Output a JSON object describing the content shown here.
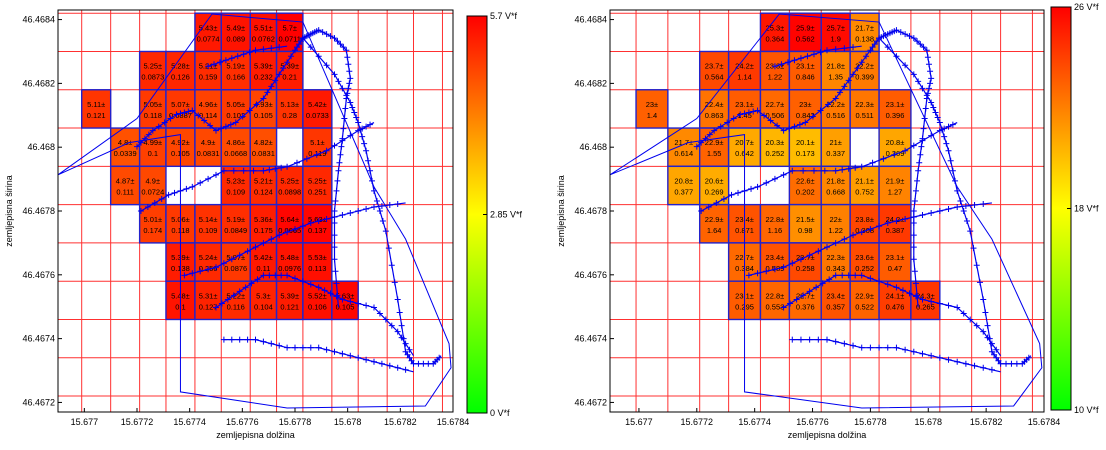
{
  "chart_data": [
    {
      "type": "heatmap",
      "xlabel": "zemljepisna dolžina",
      "ylabel": "zemljepisna širina",
      "xlim": [
        15.6769,
        15.6784
      ],
      "ylim": [
        46.46717,
        46.46843
      ],
      "xticks": [
        "15.677",
        "15.6772",
        "15.6774",
        "15.6776",
        "15.6778",
        "15.678",
        "15.6782",
        "15.6784"
      ],
      "xtick_values": [
        15.677,
        15.6772,
        15.6774,
        15.6776,
        15.6778,
        15.678,
        15.6782,
        15.6784
      ],
      "yticks": [
        "46.4672",
        "46.4674",
        "46.4676",
        "46.4678",
        "46.468",
        "46.4682",
        "46.4684"
      ],
      "ytick_values": [
        46.4672,
        46.4674,
        46.4676,
        46.4678,
        46.468,
        46.4682,
        46.4684
      ],
      "x_edges": [
        15.67689,
        15.67699,
        15.6771,
        15.67721,
        15.67731,
        15.67742,
        15.67752,
        15.67763,
        15.67773,
        15.67783,
        15.67794,
        15.67804,
        15.67815,
        15.67825,
        15.67836
      ],
      "y_edges": [
        46.46842,
        46.4683,
        46.46818,
        46.46806,
        46.46794,
        46.46782,
        46.4677,
        46.46758,
        46.46746,
        46.46734,
        46.46722
      ],
      "colorbar": {
        "min": 0,
        "max": 5.7,
        "ticks": [
          "0 V*f",
          "2.85 V*f",
          "5.7 V*f"
        ],
        "tick_values": [
          0,
          2.85,
          5.7
        ]
      },
      "cells": [
        {
          "row": 0,
          "col": 5,
          "mean": "5.43±",
          "std": "0.0774",
          "value": 5.43
        },
        {
          "row": 0,
          "col": 6,
          "mean": "5.49±",
          "std": "0.089",
          "value": 5.49
        },
        {
          "row": 0,
          "col": 7,
          "mean": "5.51±",
          "std": "0.0762",
          "value": 5.51
        },
        {
          "row": 0,
          "col": 8,
          "mean": "5.7±",
          "std": "0.0711",
          "value": 5.7
        },
        {
          "row": 1,
          "col": 3,
          "mean": "5.25±",
          "std": "0.0873",
          "value": 5.25
        },
        {
          "row": 1,
          "col": 4,
          "mean": "5.28±",
          "std": "0.126",
          "value": 5.28
        },
        {
          "row": 1,
          "col": 5,
          "mean": "5.21±",
          "std": "0.159",
          "value": 5.21
        },
        {
          "row": 1,
          "col": 6,
          "mean": "5.19±",
          "std": "0.166",
          "value": 5.19
        },
        {
          "row": 1,
          "col": 7,
          "mean": "5.39±",
          "std": "0.232",
          "value": 5.39
        },
        {
          "row": 1,
          "col": 8,
          "mean": "5.39±",
          "std": "0.21",
          "value": 5.39
        },
        {
          "row": 2,
          "col": 1,
          "mean": "5.11±",
          "std": "0.121",
          "value": 5.11
        },
        {
          "row": 2,
          "col": 3,
          "mean": "5.05±",
          "std": "0.118",
          "value": 5.05
        },
        {
          "row": 2,
          "col": 4,
          "mean": "5.07±",
          "std": "0.0887",
          "value": 5.07
        },
        {
          "row": 2,
          "col": 5,
          "mean": "4.96±",
          "std": "0.114",
          "value": 4.96
        },
        {
          "row": 2,
          "col": 6,
          "mean": "5.05±",
          "std": "0.102",
          "value": 5.05
        },
        {
          "row": 2,
          "col": 7,
          "mean": "4.93±",
          "std": "0.105",
          "value": 4.93
        },
        {
          "row": 2,
          "col": 8,
          "mean": "5.13±",
          "std": "0.28",
          "value": 5.13
        },
        {
          "row": 2,
          "col": 9,
          "mean": "5.42±",
          "std": "0.0733",
          "value": 5.42
        },
        {
          "row": 3,
          "col": 2,
          "mean": "4.8±",
          "std": "0.0339",
          "value": 4.8
        },
        {
          "row": 3,
          "col": 3,
          "mean": "4.99±",
          "std": "0.1",
          "value": 4.99
        },
        {
          "row": 3,
          "col": 4,
          "mean": "4.92±",
          "std": "0.105",
          "value": 4.92
        },
        {
          "row": 3,
          "col": 5,
          "mean": "4.9±",
          "std": "0.0831",
          "value": 4.9
        },
        {
          "row": 3,
          "col": 6,
          "mean": "4.86±",
          "std": "0.0668",
          "value": 4.86
        },
        {
          "row": 3,
          "col": 7,
          "mean": "4.82±",
          "std": "0.0831",
          "value": 4.82
        },
        {
          "row": 3,
          "col": 9,
          "mean": "5.1±",
          "std": "0.119",
          "value": 5.1
        },
        {
          "row": 4,
          "col": 2,
          "mean": "4.87±",
          "std": "0.111",
          "value": 4.87
        },
        {
          "row": 4,
          "col": 3,
          "mean": "4.9±",
          "std": "0.0724",
          "value": 4.9
        },
        {
          "row": 4,
          "col": 6,
          "mean": "5.23±",
          "std": "0.109",
          "value": 5.23
        },
        {
          "row": 4,
          "col": 7,
          "mean": "5.21±",
          "std": "0.124",
          "value": 5.21
        },
        {
          "row": 4,
          "col": 8,
          "mean": "5.25±",
          "std": "0.0898",
          "value": 5.25
        },
        {
          "row": 4,
          "col": 9,
          "mean": "5.25±",
          "std": "0.251",
          "value": 5.25
        },
        {
          "row": 5,
          "col": 3,
          "mean": "5.01±",
          "std": "0.174",
          "value": 5.01
        },
        {
          "row": 5,
          "col": 4,
          "mean": "5.06±",
          "std": "0.118",
          "value": 5.06
        },
        {
          "row": 5,
          "col": 5,
          "mean": "5.14±",
          "std": "0.109",
          "value": 5.14
        },
        {
          "row": 5,
          "col": 6,
          "mean": "5.19±",
          "std": "0.0849",
          "value": 5.19
        },
        {
          "row": 5,
          "col": 7,
          "mean": "5.36±",
          "std": "0.175",
          "value": 5.36
        },
        {
          "row": 5,
          "col": 8,
          "mean": "5.64±",
          "std": "0.0665",
          "value": 5.64
        },
        {
          "row": 5,
          "col": 9,
          "mean": "5.63±",
          "std": "0.137",
          "value": 5.63
        },
        {
          "row": 6,
          "col": 4,
          "mean": "5.39±",
          "std": "0.138",
          "value": 5.39
        },
        {
          "row": 6,
          "col": 5,
          "mean": "5.24±",
          "std": "0.256",
          "value": 5.24
        },
        {
          "row": 6,
          "col": 6,
          "mean": "5.07±",
          "std": "0.0876",
          "value": 5.07
        },
        {
          "row": 6,
          "col": 7,
          "mean": "5.42±",
          "std": "0.11",
          "value": 5.42
        },
        {
          "row": 6,
          "col": 8,
          "mean": "5.48±",
          "std": "0.0976",
          "value": 5.48
        },
        {
          "row": 6,
          "col": 9,
          "mean": "5.53±",
          "std": "0.113",
          "value": 5.53
        },
        {
          "row": 7,
          "col": 4,
          "mean": "5.48±",
          "std": "0.1",
          "value": 5.48
        },
        {
          "row": 7,
          "col": 5,
          "mean": "5.31±",
          "std": "0.127",
          "value": 5.31
        },
        {
          "row": 7,
          "col": 6,
          "mean": "5.22±",
          "std": "0.116",
          "value": 5.22
        },
        {
          "row": 7,
          "col": 7,
          "mean": "5.3±",
          "std": "0.104",
          "value": 5.3
        },
        {
          "row": 7,
          "col": 8,
          "mean": "5.39±",
          "std": "0.121",
          "value": 5.39
        },
        {
          "row": 7,
          "col": 9,
          "mean": "5.52±",
          "std": "0.106",
          "value": 5.52
        },
        {
          "row": 7,
          "col": 10,
          "mean": "5.63±",
          "std": "0.105",
          "value": 5.63
        }
      ]
    },
    {
      "type": "heatmap",
      "xlabel": "zemljepisna dolžina",
      "ylabel": "zemljepisna širina",
      "xlim": [
        15.6769,
        15.6784
      ],
      "ylim": [
        46.46717,
        46.46843
      ],
      "xticks": [
        "15.677",
        "15.6772",
        "15.6774",
        "15.6776",
        "15.6778",
        "15.678",
        "15.6782",
        "15.6784"
      ],
      "xtick_values": [
        15.677,
        15.6772,
        15.6774,
        15.6776,
        15.6778,
        15.678,
        15.6782,
        15.6784
      ],
      "yticks": [
        "46.4672",
        "46.4674",
        "46.4676",
        "46.4678",
        "46.468",
        "46.4682",
        "46.4684"
      ],
      "ytick_values": [
        46.4672,
        46.4674,
        46.4676,
        46.4678,
        46.468,
        46.4682,
        46.4684
      ],
      "x_edges": [
        15.67689,
        15.67699,
        15.6771,
        15.67721,
        15.67731,
        15.67742,
        15.67752,
        15.67763,
        15.67773,
        15.67783,
        15.67794,
        15.67804,
        15.67815,
        15.67825,
        15.67836
      ],
      "y_edges": [
        46.46842,
        46.4683,
        46.46818,
        46.46806,
        46.46794,
        46.46782,
        46.4677,
        46.46758,
        46.46746,
        46.46734,
        46.46722
      ],
      "colorbar": {
        "min": 10,
        "max": 26,
        "ticks": [
          "10 V*f",
          "18 V*f",
          "26 V*f"
        ],
        "tick_values": [
          10,
          18,
          26
        ]
      },
      "cells": [
        {
          "row": 0,
          "col": 5,
          "mean": "25.3±",
          "std": "0.364",
          "value": 25.3
        },
        {
          "row": 0,
          "col": 6,
          "mean": "25.9±",
          "std": "0.562",
          "value": 25.9
        },
        {
          "row": 0,
          "col": 7,
          "mean": "25.7±",
          "std": "1.9",
          "value": 25.7
        },
        {
          "row": 0,
          "col": 8,
          "mean": "21.7±",
          "std": "0.138",
          "value": 21.7
        },
        {
          "row": 1,
          "col": 3,
          "mean": "23.7±",
          "std": "0.564",
          "value": 23.7
        },
        {
          "row": 1,
          "col": 4,
          "mean": "24.2±",
          "std": "1.14",
          "value": 24.2
        },
        {
          "row": 1,
          "col": 5,
          "mean": "23.3±",
          "std": "1.22",
          "value": 23.3
        },
        {
          "row": 1,
          "col": 6,
          "mean": "23.1±",
          "std": "0.846",
          "value": 23.1
        },
        {
          "row": 1,
          "col": 7,
          "mean": "21.8±",
          "std": "1.35",
          "value": 21.8
        },
        {
          "row": 1,
          "col": 8,
          "mean": "22.2±",
          "std": "0.399",
          "value": 22.2
        },
        {
          "row": 2,
          "col": 1,
          "mean": "23±",
          "std": "1.4",
          "value": 23
        },
        {
          "row": 2,
          "col": 3,
          "mean": "22.4±",
          "std": "0.863",
          "value": 22.4
        },
        {
          "row": 2,
          "col": 4,
          "mean": "23.1±",
          "std": "1.45",
          "value": 23.1
        },
        {
          "row": 2,
          "col": 5,
          "mean": "22.7±",
          "std": "0.506",
          "value": 22.7
        },
        {
          "row": 2,
          "col": 6,
          "mean": "23±",
          "std": "0.842",
          "value": 23
        },
        {
          "row": 2,
          "col": 7,
          "mean": "22.2±",
          "std": "0.516",
          "value": 22.2
        },
        {
          "row": 2,
          "col": 8,
          "mean": "22.3±",
          "std": "0.511",
          "value": 22.3
        },
        {
          "row": 2,
          "col": 9,
          "mean": "23.1±",
          "std": "0.396",
          "value": 23.1
        },
        {
          "row": 3,
          "col": 2,
          "mean": "21.7±",
          "std": "0.614",
          "value": 21.7
        },
        {
          "row": 3,
          "col": 3,
          "mean": "22.9±",
          "std": "1.55",
          "value": 22.9
        },
        {
          "row": 3,
          "col": 4,
          "mean": "20.7±",
          "std": "0.642",
          "value": 20.7
        },
        {
          "row": 3,
          "col": 5,
          "mean": "20.3±",
          "std": "0.252",
          "value": 20.3
        },
        {
          "row": 3,
          "col": 6,
          "mean": "20.1±",
          "std": "0.173",
          "value": 20.1
        },
        {
          "row": 3,
          "col": 7,
          "mean": "21±",
          "std": "0.337",
          "value": 21
        },
        {
          "row": 3,
          "col": 9,
          "mean": "20.8±",
          "std": "0.369",
          "value": 20.8
        },
        {
          "row": 4,
          "col": 2,
          "mean": "20.8±",
          "std": "0.377",
          "value": 20.8
        },
        {
          "row": 4,
          "col": 3,
          "mean": "20.6±",
          "std": "0.269",
          "value": 20.6
        },
        {
          "row": 4,
          "col": 6,
          "mean": "22.6±",
          "std": "0.202",
          "value": 22.6
        },
        {
          "row": 4,
          "col": 7,
          "mean": "21.8±",
          "std": "0.668",
          "value": 21.8
        },
        {
          "row": 4,
          "col": 8,
          "mean": "21.1±",
          "std": "0.752",
          "value": 21.1
        },
        {
          "row": 4,
          "col": 9,
          "mean": "21.9±",
          "std": "1.27",
          "value": 21.9
        },
        {
          "row": 5,
          "col": 3,
          "mean": "22.9±",
          "std": "1.64",
          "value": 22.9
        },
        {
          "row": 5,
          "col": 4,
          "mean": "23.4±",
          "std": "0.871",
          "value": 23.4
        },
        {
          "row": 5,
          "col": 5,
          "mean": "22.8±",
          "std": "1.16",
          "value": 22.8
        },
        {
          "row": 5,
          "col": 6,
          "mean": "21.5±",
          "std": "0.98",
          "value": 21.5
        },
        {
          "row": 5,
          "col": 7,
          "mean": "22±",
          "std": "1.22",
          "value": 22
        },
        {
          "row": 5,
          "col": 8,
          "mean": "23.8±",
          "std": "0.308",
          "value": 23.8
        },
        {
          "row": 5,
          "col": 9,
          "mean": "24.2±",
          "std": "0.387",
          "value": 24.2
        },
        {
          "row": 6,
          "col": 4,
          "mean": "22.7±",
          "std": "0.384",
          "value": 22.7
        },
        {
          "row": 6,
          "col": 5,
          "mean": "23.4±",
          "std": "0.589",
          "value": 23.4
        },
        {
          "row": 6,
          "col": 6,
          "mean": "23.7±",
          "std": "0.258",
          "value": 23.7
        },
        {
          "row": 6,
          "col": 7,
          "mean": "22.3±",
          "std": "0.343",
          "value": 22.3
        },
        {
          "row": 6,
          "col": 8,
          "mean": "23.6±",
          "std": "0.252",
          "value": 23.6
        },
        {
          "row": 6,
          "col": 9,
          "mean": "23.1±",
          "std": "0.47",
          "value": 23.1
        },
        {
          "row": 7,
          "col": 4,
          "mean": "23.1±",
          "std": "0.295",
          "value": 23.1
        },
        {
          "row": 7,
          "col": 5,
          "mean": "22.8±",
          "std": "0.553",
          "value": 22.8
        },
        {
          "row": 7,
          "col": 6,
          "mean": "22.7±",
          "std": "0.376",
          "value": 22.7
        },
        {
          "row": 7,
          "col": 7,
          "mean": "23.4±",
          "std": "0.357",
          "value": 23.4
        },
        {
          "row": 7,
          "col": 8,
          "mean": "22.9±",
          "std": "0.522",
          "value": 22.9
        },
        {
          "row": 7,
          "col": 9,
          "mean": "24.1±",
          "std": "0.476",
          "value": 24.1
        },
        {
          "row": 7,
          "col": 10,
          "mean": "24.3±",
          "std": "0.265",
          "value": 24.3
        }
      ]
    }
  ],
  "colors": {
    "grid": "#ff3030",
    "cell_border": "#2222cc",
    "route": "#0000ee",
    "axis": "#000000",
    "colormap": [
      "#00ff00",
      "#ffff00",
      "#ff0000"
    ]
  }
}
